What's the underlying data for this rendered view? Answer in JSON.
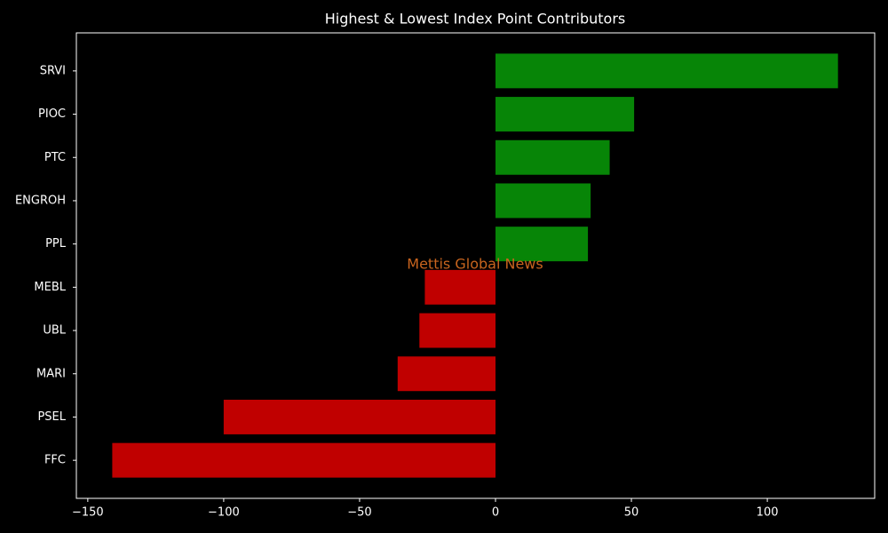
{
  "chart_data": {
    "type": "hbar",
    "title": "Highest & Lowest Index Point Contributors",
    "watermark": "Mettis Global News",
    "categories": [
      "SRVI",
      "PIOC",
      "PTC",
      "ENGROH",
      "PPL",
      "MEBL",
      "UBL",
      "MARI",
      "PSEL",
      "FFC"
    ],
    "values": [
      126,
      51,
      42,
      35,
      34,
      -26,
      -28,
      -36,
      -100,
      -141
    ],
    "colors": [
      "#078507",
      "#078507",
      "#078507",
      "#078507",
      "#078507",
      "#c00000",
      "#c00000",
      "#c00000",
      "#c00000",
      "#c00000"
    ],
    "xlim": [
      -154.2,
      139.5
    ],
    "xticks": [
      {
        "value": -150,
        "label": "−150"
      },
      {
        "value": -100,
        "label": "−100"
      },
      {
        "value": -50,
        "label": "−50"
      },
      0,
      50,
      100
    ]
  }
}
